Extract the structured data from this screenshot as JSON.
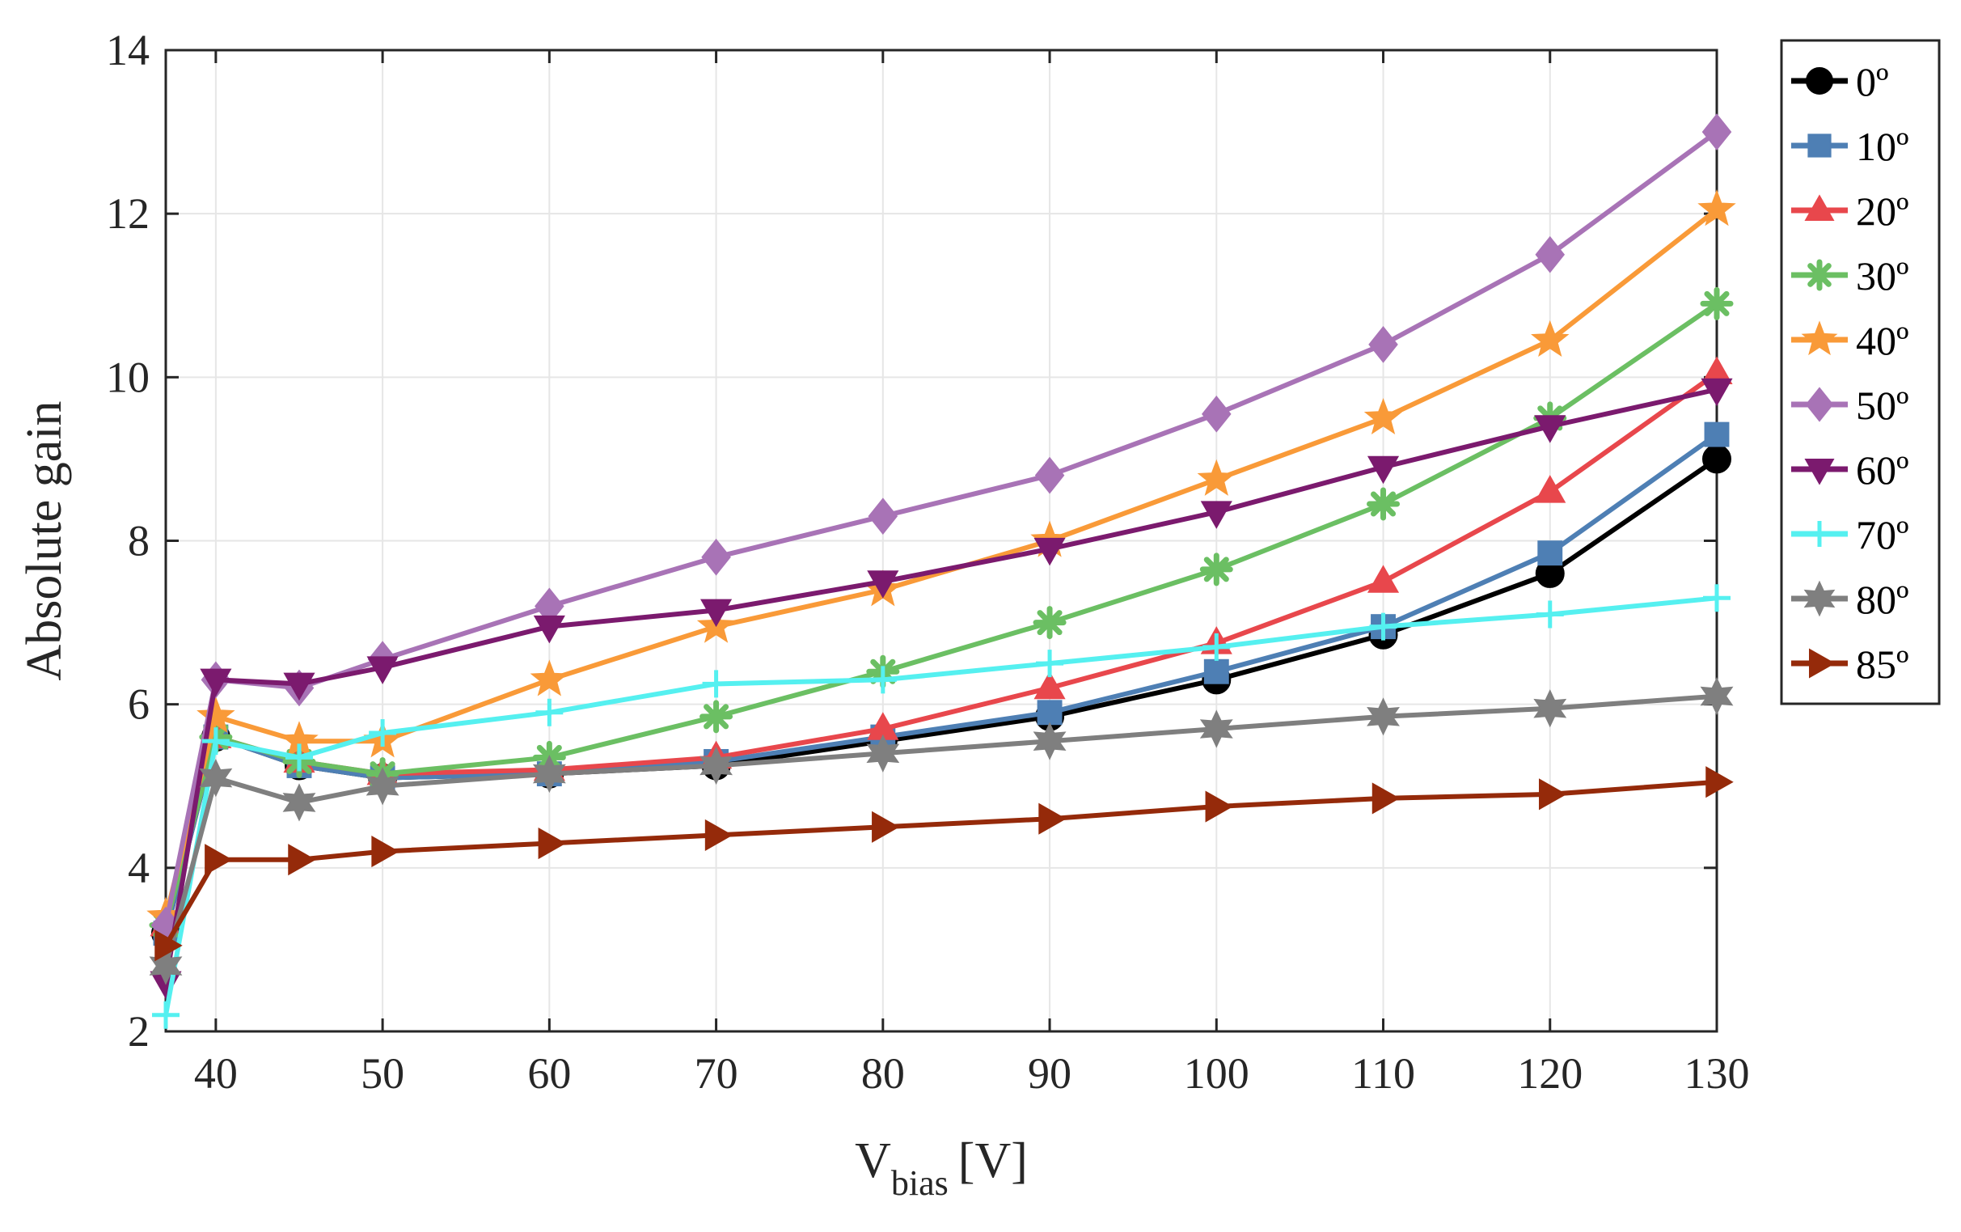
{
  "chart_data": {
    "type": "line",
    "title": "",
    "xlabel": "V",
    "xlabel_subscript": "bias",
    "xlabel_unit": "[V]",
    "ylabel": "Absolute gain",
    "xlim": [
      37,
      130
    ],
    "ylim": [
      2,
      14
    ],
    "xticks": [
      40,
      50,
      60,
      70,
      80,
      90,
      100,
      110,
      120,
      130
    ],
    "yticks": [
      2,
      4,
      6,
      8,
      10,
      12,
      14
    ],
    "grid": true,
    "legend_position": "outside-right-top",
    "x": [
      37,
      40,
      45,
      50,
      60,
      70,
      80,
      90,
      100,
      110,
      120,
      130
    ],
    "series": [
      {
        "name": "0º",
        "color": "#000000",
        "marker": "circle",
        "values": [
          3.2,
          5.6,
          5.25,
          5.1,
          5.15,
          5.25,
          5.55,
          5.85,
          6.3,
          6.85,
          7.6,
          9.0
        ]
      },
      {
        "name": "10º",
        "color": "#4E7FB4",
        "marker": "square",
        "values": [
          3.2,
          5.6,
          5.25,
          5.1,
          5.15,
          5.3,
          5.6,
          5.9,
          6.4,
          6.95,
          7.85,
          9.3
        ]
      },
      {
        "name": "20º",
        "color": "#E8474C",
        "marker": "triangle-up",
        "values": [
          3.3,
          5.6,
          5.3,
          5.15,
          5.2,
          5.35,
          5.7,
          6.2,
          6.75,
          7.5,
          8.6,
          10.05
        ]
      },
      {
        "name": "30º",
        "color": "#6BBF63",
        "marker": "asterisk",
        "values": [
          3.3,
          5.6,
          5.3,
          5.15,
          5.35,
          5.85,
          6.4,
          7.0,
          7.65,
          8.45,
          9.5,
          10.9
        ]
      },
      {
        "name": "40º",
        "color": "#F99A38",
        "marker": "star",
        "values": [
          3.4,
          5.85,
          5.55,
          5.55,
          6.3,
          6.95,
          7.4,
          8.0,
          8.75,
          9.5,
          10.45,
          12.05
        ]
      },
      {
        "name": "50º",
        "color": "#A873B6",
        "marker": "diamond",
        "values": [
          3.3,
          6.3,
          6.2,
          6.55,
          7.2,
          7.8,
          8.3,
          8.8,
          9.55,
          10.4,
          11.5,
          13.0
        ]
      },
      {
        "name": "60º",
        "color": "#7B1A6E",
        "marker": "triangle-down",
        "values": [
          2.6,
          6.3,
          6.25,
          6.45,
          6.95,
          7.15,
          7.5,
          7.9,
          8.35,
          8.9,
          9.4,
          9.85
        ]
      },
      {
        "name": "70º",
        "color": "#55F0F0",
        "marker": "plus",
        "values": [
          2.2,
          5.55,
          5.35,
          5.65,
          5.9,
          6.25,
          6.3,
          6.5,
          6.7,
          6.95,
          7.1,
          7.3
        ]
      },
      {
        "name": "80º",
        "color": "#7F7F7F",
        "marker": "hexagram",
        "values": [
          2.8,
          5.1,
          4.8,
          5.0,
          5.15,
          5.25,
          5.4,
          5.55,
          5.7,
          5.85,
          5.95,
          6.1
        ]
      },
      {
        "name": "85º",
        "color": "#952A0A",
        "marker": "triangle-right",
        "values": [
          3.05,
          4.1,
          4.1,
          4.2,
          4.3,
          4.4,
          4.5,
          4.6,
          4.75,
          4.85,
          4.9,
          5.05
        ]
      }
    ]
  }
}
